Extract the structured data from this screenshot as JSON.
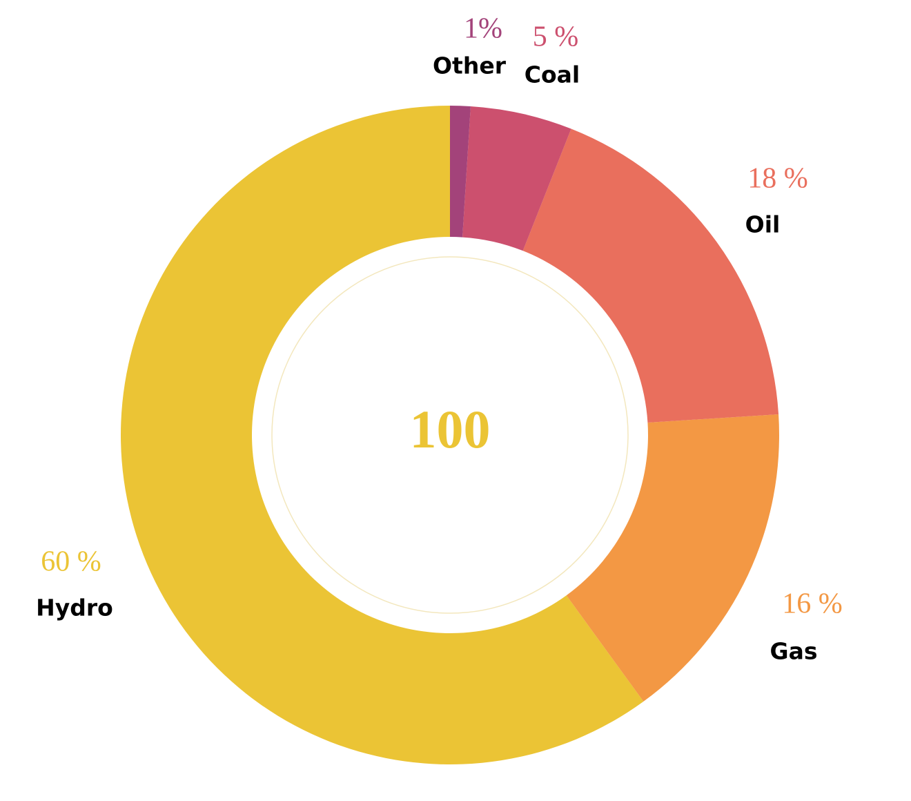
{
  "chart_data": {
    "type": "donut",
    "categories": [
      "Other",
      "Coal",
      "Oil",
      "Gas",
      "Hydro"
    ],
    "values": [
      1,
      5,
      18,
      16,
      60
    ],
    "value_labels": [
      "1%",
      "5 %",
      "18 %",
      "16 %",
      "60 %"
    ],
    "colors": [
      "#a3437a",
      "#cc506e",
      "#e96f5d",
      "#f39844",
      "#ebc435"
    ],
    "center_label": 100
  }
}
